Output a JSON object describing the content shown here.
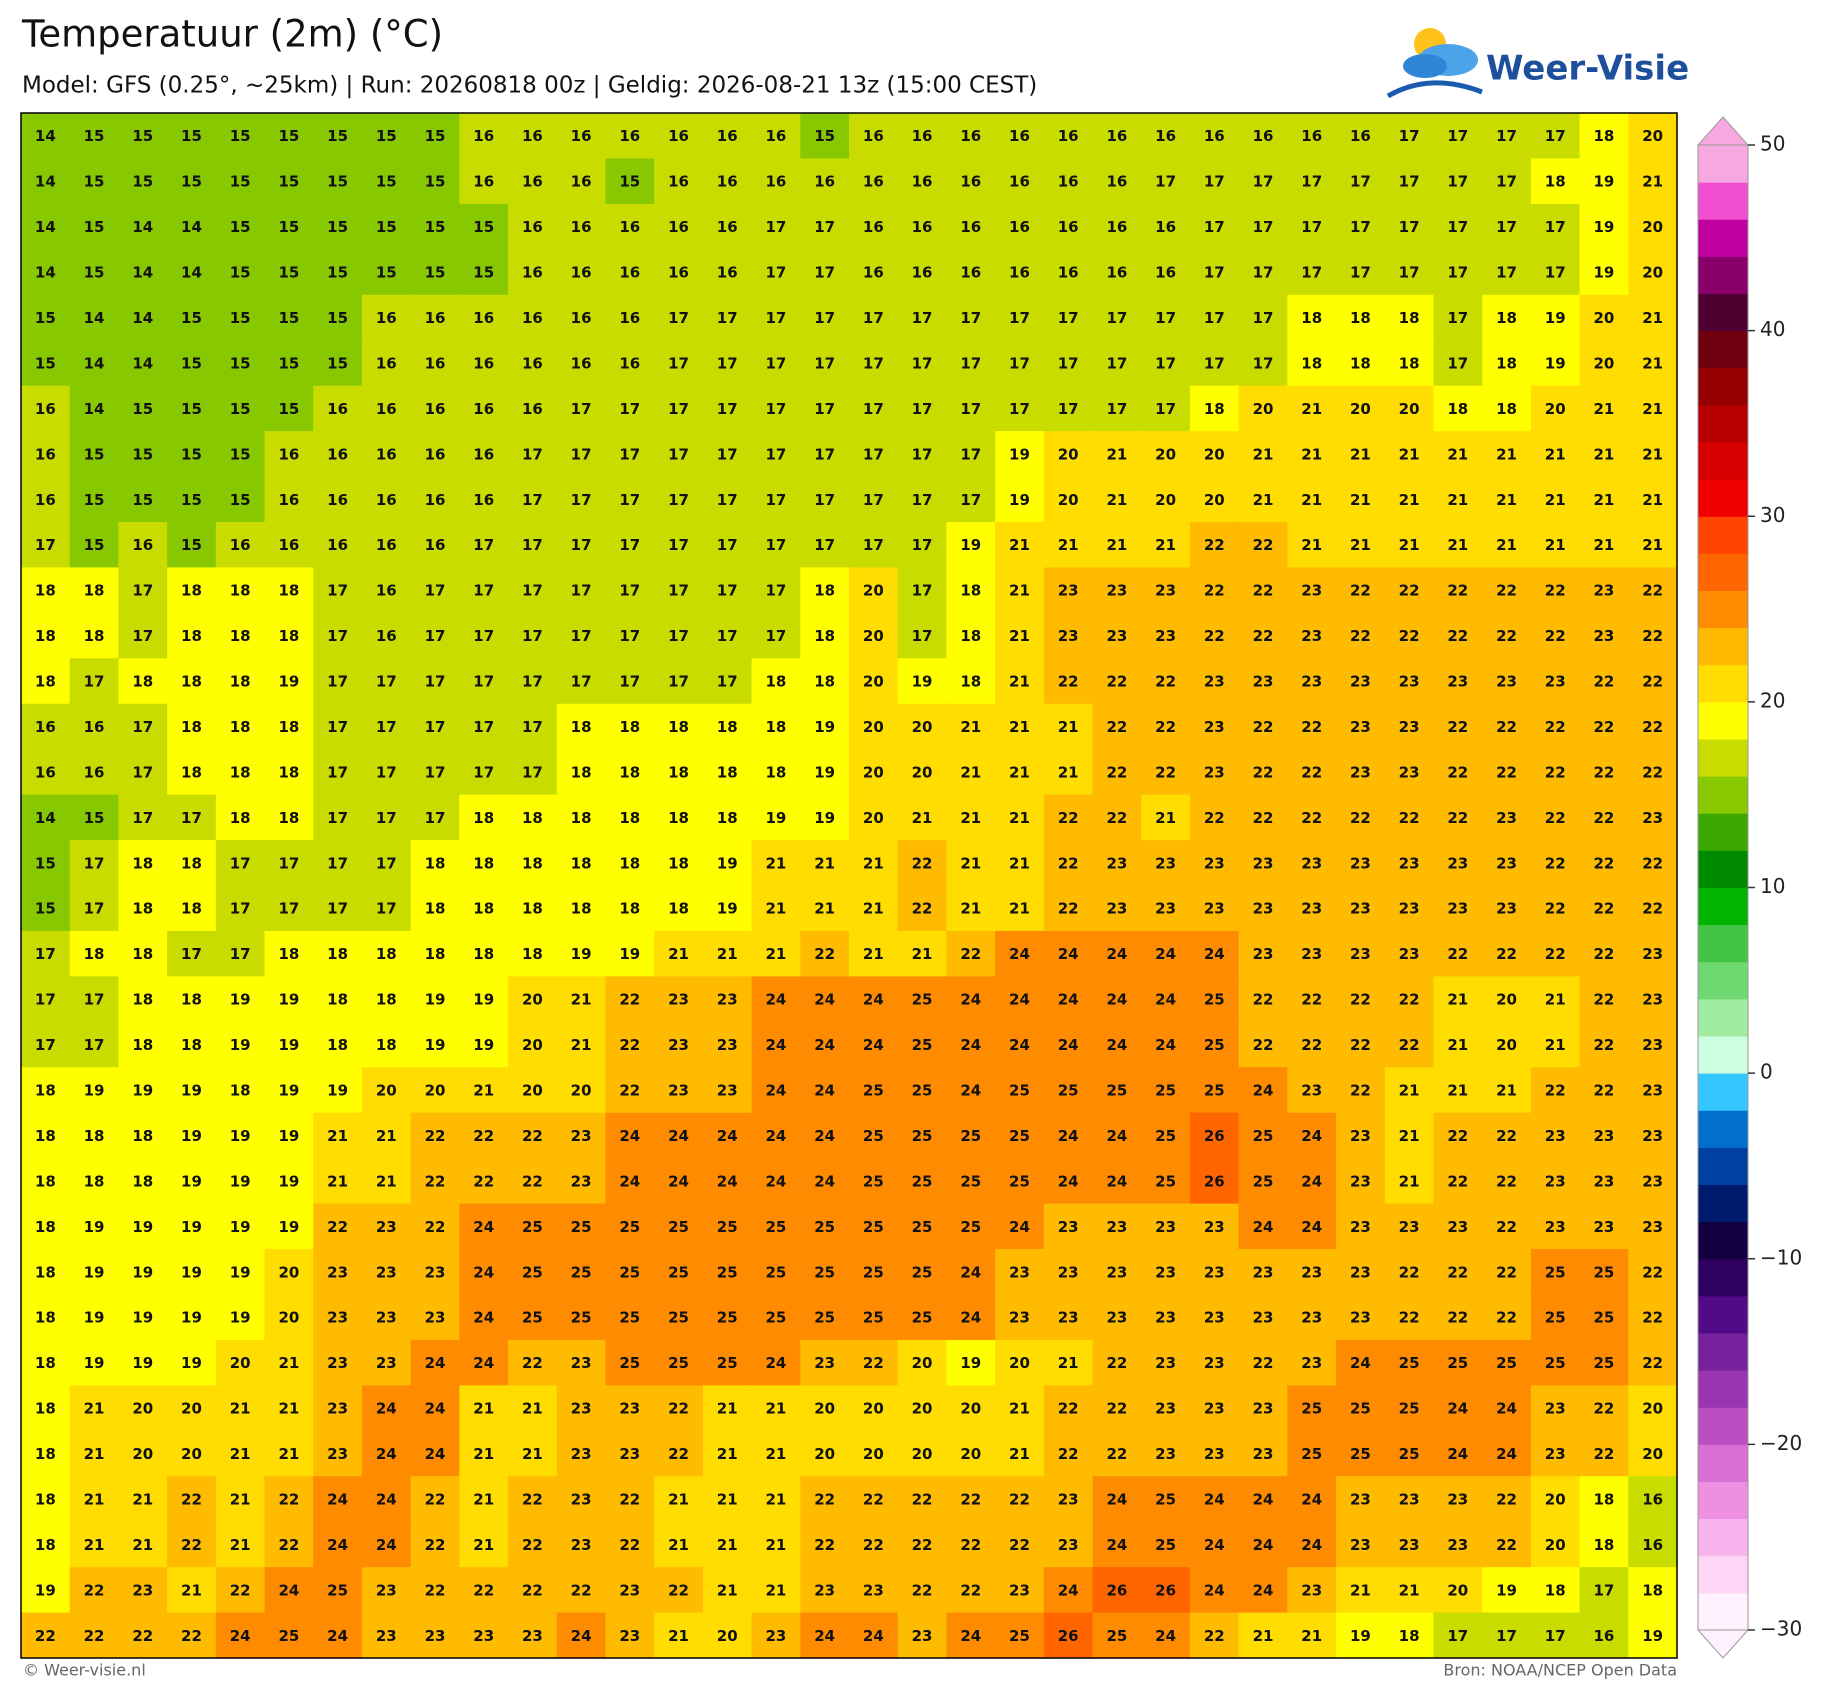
{
  "chart_data": {
    "type": "heatmap",
    "title": "Temperatuur (2m) (°C)",
    "subtitle": "Model: GFS (0.25°, ~25km)  |  Run: 20260818 00z  |  Geldig: 2026-08-21 13z (15:00 CEST)",
    "values": [
      [
        14,
        15,
        15,
        15,
        15,
        15,
        15,
        15,
        15,
        16,
        16,
        16,
        16,
        16,
        16,
        16,
        15,
        16,
        16,
        16,
        16,
        16,
        16,
        16,
        16,
        16,
        16,
        16,
        17,
        17,
        17,
        17,
        18,
        20
      ],
      [
        14,
        15,
        15,
        15,
        15,
        15,
        15,
        15,
        15,
        16,
        16,
        16,
        15,
        16,
        16,
        16,
        16,
        16,
        16,
        16,
        16,
        16,
        16,
        17,
        17,
        17,
        17,
        17,
        17,
        17,
        17,
        18,
        19,
        21
      ],
      [
        14,
        15,
        14,
        14,
        15,
        15,
        15,
        15,
        15,
        15,
        16,
        16,
        16,
        16,
        16,
        17,
        17,
        16,
        16,
        16,
        16,
        16,
        16,
        16,
        17,
        17,
        17,
        17,
        17,
        17,
        17,
        17,
        19,
        20
      ],
      [
        14,
        15,
        14,
        14,
        15,
        15,
        15,
        15,
        15,
        15,
        16,
        16,
        16,
        16,
        16,
        17,
        17,
        16,
        16,
        16,
        16,
        16,
        16,
        16,
        17,
        17,
        17,
        17,
        17,
        17,
        17,
        17,
        19,
        20
      ],
      [
        15,
        14,
        14,
        15,
        15,
        15,
        15,
        16,
        16,
        16,
        16,
        16,
        16,
        17,
        17,
        17,
        17,
        17,
        17,
        17,
        17,
        17,
        17,
        17,
        17,
        17,
        18,
        18,
        18,
        17,
        18,
        19,
        20,
        21
      ],
      [
        15,
        14,
        14,
        15,
        15,
        15,
        15,
        16,
        16,
        16,
        16,
        16,
        16,
        17,
        17,
        17,
        17,
        17,
        17,
        17,
        17,
        17,
        17,
        17,
        17,
        17,
        18,
        18,
        18,
        17,
        18,
        19,
        20,
        21
      ],
      [
        16,
        14,
        15,
        15,
        15,
        15,
        16,
        16,
        16,
        16,
        16,
        17,
        17,
        17,
        17,
        17,
        17,
        17,
        17,
        17,
        17,
        17,
        17,
        17,
        18,
        20,
        21,
        20,
        20,
        18,
        18,
        20,
        21,
        21
      ],
      [
        16,
        15,
        15,
        15,
        15,
        16,
        16,
        16,
        16,
        16,
        17,
        17,
        17,
        17,
        17,
        17,
        17,
        17,
        17,
        17,
        19,
        20,
        21,
        20,
        20,
        21,
        21,
        21,
        21,
        21,
        21,
        21,
        21,
        21
      ],
      [
        16,
        15,
        15,
        15,
        15,
        16,
        16,
        16,
        16,
        16,
        17,
        17,
        17,
        17,
        17,
        17,
        17,
        17,
        17,
        17,
        19,
        20,
        21,
        20,
        20,
        21,
        21,
        21,
        21,
        21,
        21,
        21,
        21,
        21
      ],
      [
        17,
        15,
        16,
        15,
        16,
        16,
        16,
        16,
        16,
        17,
        17,
        17,
        17,
        17,
        17,
        17,
        17,
        17,
        17,
        19,
        21,
        21,
        21,
        21,
        22,
        22,
        21,
        21,
        21,
        21,
        21,
        21,
        21,
        21
      ],
      [
        18,
        18,
        17,
        18,
        18,
        18,
        17,
        16,
        17,
        17,
        17,
        17,
        17,
        17,
        17,
        17,
        18,
        20,
        17,
        18,
        21,
        23,
        23,
        23,
        22,
        22,
        23,
        22,
        22,
        22,
        22,
        22,
        23,
        22
      ],
      [
        18,
        18,
        17,
        18,
        18,
        18,
        17,
        16,
        17,
        17,
        17,
        17,
        17,
        17,
        17,
        17,
        18,
        20,
        17,
        18,
        21,
        23,
        23,
        23,
        22,
        22,
        23,
        22,
        22,
        22,
        22,
        22,
        23,
        22
      ],
      [
        18,
        17,
        18,
        18,
        18,
        19,
        17,
        17,
        17,
        17,
        17,
        17,
        17,
        17,
        17,
        18,
        18,
        20,
        19,
        18,
        21,
        22,
        22,
        22,
        23,
        23,
        23,
        23,
        23,
        23,
        23,
        23,
        22,
        22
      ],
      [
        16,
        16,
        17,
        18,
        18,
        18,
        17,
        17,
        17,
        17,
        17,
        18,
        18,
        18,
        18,
        18,
        19,
        20,
        20,
        21,
        21,
        21,
        22,
        22,
        23,
        22,
        22,
        23,
        23,
        22,
        22,
        22,
        22,
        22
      ],
      [
        16,
        16,
        17,
        18,
        18,
        18,
        17,
        17,
        17,
        17,
        17,
        18,
        18,
        18,
        18,
        18,
        19,
        20,
        20,
        21,
        21,
        21,
        22,
        22,
        23,
        22,
        22,
        23,
        23,
        22,
        22,
        22,
        22,
        22
      ],
      [
        14,
        15,
        17,
        17,
        18,
        18,
        17,
        17,
        17,
        18,
        18,
        18,
        18,
        18,
        18,
        19,
        19,
        20,
        21,
        21,
        21,
        22,
        22,
        21,
        22,
        22,
        22,
        22,
        22,
        22,
        23,
        22,
        22,
        23
      ],
      [
        15,
        17,
        18,
        18,
        17,
        17,
        17,
        17,
        18,
        18,
        18,
        18,
        18,
        18,
        19,
        21,
        21,
        21,
        22,
        21,
        21,
        22,
        23,
        23,
        23,
        23,
        23,
        23,
        23,
        23,
        23,
        22,
        22,
        22
      ],
      [
        15,
        17,
        18,
        18,
        17,
        17,
        17,
        17,
        18,
        18,
        18,
        18,
        18,
        18,
        19,
        21,
        21,
        21,
        22,
        21,
        21,
        22,
        23,
        23,
        23,
        23,
        23,
        23,
        23,
        23,
        23,
        22,
        22,
        22
      ],
      [
        17,
        18,
        18,
        17,
        17,
        18,
        18,
        18,
        18,
        18,
        18,
        19,
        19,
        21,
        21,
        21,
        22,
        21,
        21,
        22,
        24,
        24,
        24,
        24,
        24,
        23,
        23,
        23,
        23,
        22,
        22,
        22,
        22,
        23
      ],
      [
        17,
        17,
        18,
        18,
        19,
        19,
        18,
        18,
        19,
        19,
        20,
        21,
        22,
        23,
        23,
        24,
        24,
        24,
        25,
        24,
        24,
        24,
        24,
        24,
        25,
        22,
        22,
        22,
        22,
        21,
        20,
        21,
        22,
        23
      ],
      [
        17,
        17,
        18,
        18,
        19,
        19,
        18,
        18,
        19,
        19,
        20,
        21,
        22,
        23,
        23,
        24,
        24,
        24,
        25,
        24,
        24,
        24,
        24,
        24,
        25,
        22,
        22,
        22,
        22,
        21,
        20,
        21,
        22,
        23
      ],
      [
        18,
        19,
        19,
        19,
        18,
        19,
        19,
        20,
        20,
        21,
        20,
        20,
        22,
        23,
        23,
        24,
        24,
        25,
        25,
        24,
        25,
        25,
        25,
        25,
        25,
        24,
        23,
        22,
        21,
        21,
        21,
        22,
        22,
        23
      ],
      [
        18,
        18,
        18,
        19,
        19,
        19,
        21,
        21,
        22,
        22,
        22,
        23,
        24,
        24,
        24,
        24,
        24,
        25,
        25,
        25,
        25,
        24,
        24,
        25,
        26,
        25,
        24,
        23,
        21,
        22,
        22,
        23,
        23,
        23
      ],
      [
        18,
        18,
        18,
        19,
        19,
        19,
        21,
        21,
        22,
        22,
        22,
        23,
        24,
        24,
        24,
        24,
        24,
        25,
        25,
        25,
        25,
        24,
        24,
        25,
        26,
        25,
        24,
        23,
        21,
        22,
        22,
        23,
        23,
        23
      ],
      [
        18,
        19,
        19,
        19,
        19,
        19,
        22,
        23,
        22,
        24,
        25,
        25,
        25,
        25,
        25,
        25,
        25,
        25,
        25,
        25,
        24,
        23,
        23,
        23,
        23,
        24,
        24,
        23,
        23,
        23,
        22,
        23,
        23,
        23
      ],
      [
        18,
        19,
        19,
        19,
        19,
        20,
        23,
        23,
        23,
        24,
        25,
        25,
        25,
        25,
        25,
        25,
        25,
        25,
        25,
        24,
        23,
        23,
        23,
        23,
        23,
        23,
        23,
        23,
        22,
        22,
        22,
        25,
        25,
        22
      ],
      [
        18,
        19,
        19,
        19,
        19,
        20,
        23,
        23,
        23,
        24,
        25,
        25,
        25,
        25,
        25,
        25,
        25,
        25,
        25,
        24,
        23,
        23,
        23,
        23,
        23,
        23,
        23,
        23,
        22,
        22,
        22,
        25,
        25,
        22
      ],
      [
        18,
        19,
        19,
        19,
        20,
        21,
        23,
        23,
        24,
        24,
        22,
        23,
        25,
        25,
        25,
        24,
        23,
        22,
        20,
        19,
        20,
        21,
        22,
        23,
        23,
        22,
        23,
        24,
        25,
        25,
        25,
        25,
        25,
        22
      ],
      [
        18,
        21,
        20,
        20,
        21,
        21,
        23,
        24,
        24,
        21,
        21,
        23,
        23,
        22,
        21,
        21,
        20,
        20,
        20,
        20,
        21,
        22,
        22,
        23,
        23,
        23,
        25,
        25,
        25,
        24,
        24,
        23,
        22,
        20
      ],
      [
        18,
        21,
        20,
        20,
        21,
        21,
        23,
        24,
        24,
        21,
        21,
        23,
        23,
        22,
        21,
        21,
        20,
        20,
        20,
        20,
        21,
        22,
        22,
        23,
        23,
        23,
        25,
        25,
        25,
        24,
        24,
        23,
        22,
        20
      ],
      [
        18,
        21,
        21,
        22,
        21,
        22,
        24,
        24,
        22,
        21,
        22,
        23,
        22,
        21,
        21,
        21,
        22,
        22,
        22,
        22,
        22,
        23,
        24,
        25,
        24,
        24,
        24,
        23,
        23,
        23,
        22,
        20,
        18,
        16
      ],
      [
        18,
        21,
        21,
        22,
        21,
        22,
        24,
        24,
        22,
        21,
        22,
        23,
        22,
        21,
        21,
        21,
        22,
        22,
        22,
        22,
        22,
        23,
        24,
        25,
        24,
        24,
        24,
        23,
        23,
        23,
        22,
        20,
        18,
        16
      ],
      [
        19,
        22,
        23,
        21,
        22,
        24,
        25,
        23,
        22,
        22,
        22,
        22,
        23,
        22,
        21,
        21,
        23,
        23,
        22,
        22,
        23,
        24,
        26,
        26,
        24,
        24,
        23,
        21,
        21,
        20,
        19,
        18,
        17,
        18
      ],
      [
        22,
        22,
        22,
        22,
        24,
        25,
        24,
        23,
        23,
        23,
        23,
        24,
        23,
        21,
        20,
        23,
        24,
        24,
        23,
        24,
        25,
        26,
        25,
        24,
        22,
        21,
        21,
        19,
        18,
        17,
        17,
        17,
        16,
        19
      ]
    ],
    "clim": [
      -30,
      50
    ],
    "cticks": [
      50,
      40,
      30,
      20,
      10,
      0,
      {
        "value": -10,
        "label": "−10"
      },
      {
        "value": -20,
        "label": "−20"
      },
      {
        "value": -30,
        "label": "−30"
      }
    ],
    "colors": [
      "#fef0fc",
      "#fcd6f4",
      "#f8b4ec",
      "#ee90e2",
      "#d870d4",
      "#bb4fc2",
      "#9a34b0",
      "#76229c",
      "#520a88",
      "#300060",
      "#140040",
      "#001a6e",
      "#0040a0",
      "#0070cc",
      "#33c6ff",
      "#ccffe0",
      "#a0eca0",
      "#70d870",
      "#44c444",
      "#00b400",
      "#008a00",
      "#3aa800",
      "#88c800",
      "#c8dc00",
      "#ffff00",
      "#ffdd00",
      "#ffbb00",
      "#ff8c00",
      "#ff6600",
      "#ff4400",
      "#f00000",
      "#d60000",
      "#b80000",
      "#960000",
      "#6e0010",
      "#4e0030",
      "#8a006a",
      "#c000a0",
      "#f050d0",
      "#f8a8e0"
    ]
  },
  "logo": "Weer-Visie",
  "credit": "© Weer-visie.nl",
  "source": "Bron: NOAA/NCEP Open Data"
}
